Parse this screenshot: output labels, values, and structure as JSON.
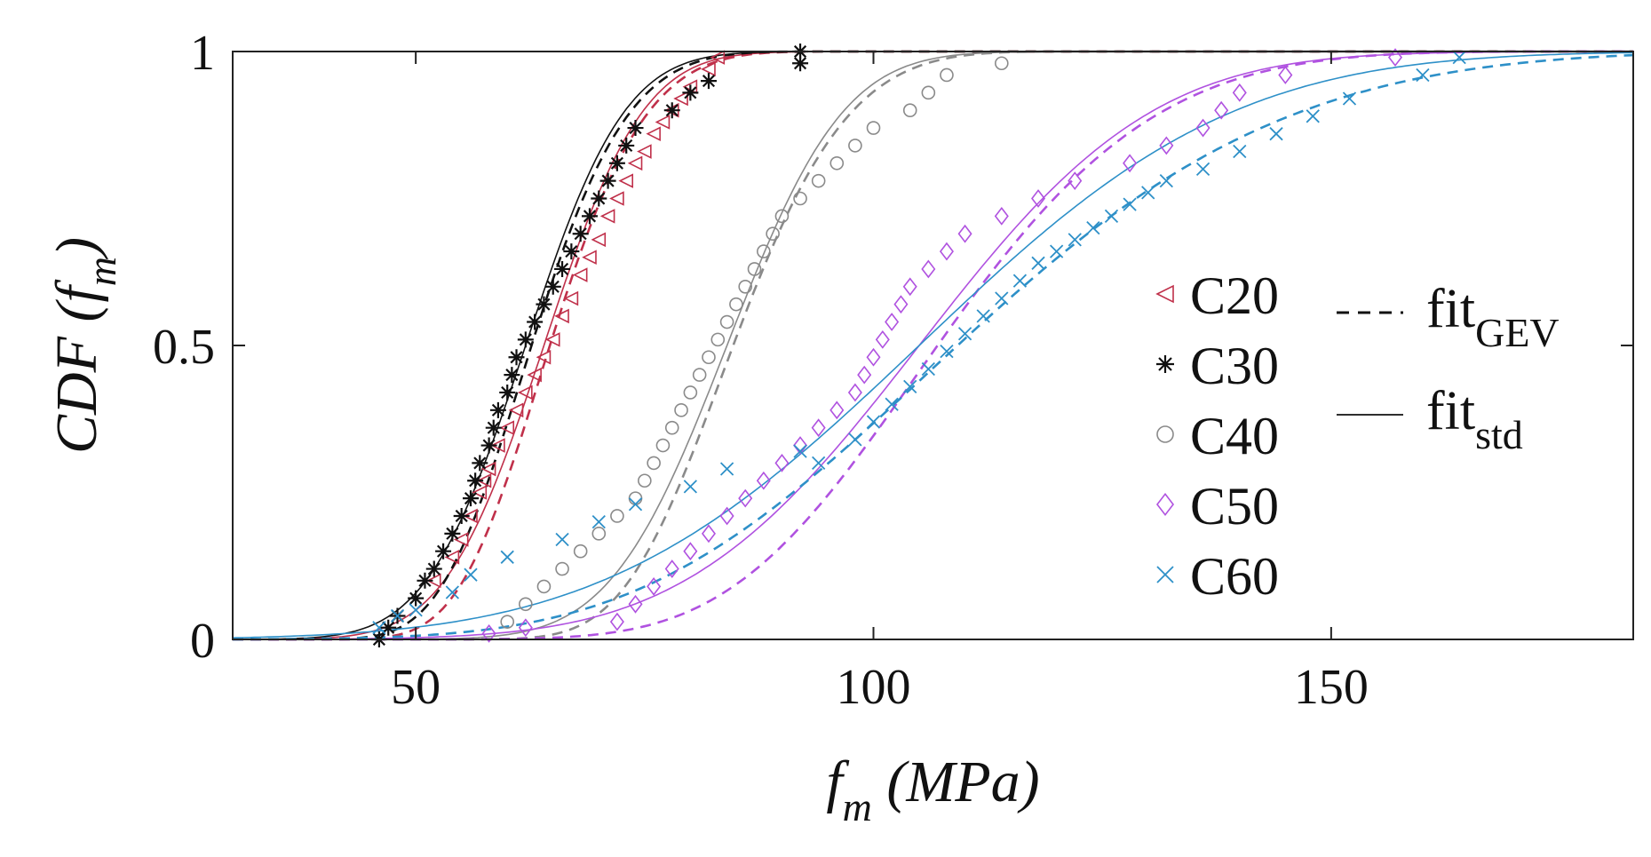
{
  "chart_data": {
    "type": "scatter",
    "title": "",
    "xlabel": {
      "main": "f",
      "sub": "m",
      "rest": " (MPa)"
    },
    "ylabel": {
      "main": "CDF (f",
      "sub": "m",
      "rest": ")"
    },
    "xlim": [
      30,
      183
    ],
    "ylim": [
      0,
      1
    ],
    "xticks": [
      50,
      100,
      150
    ],
    "xtick_labels": [
      "50",
      "100",
      "150"
    ],
    "yticks": [
      0,
      0.5,
      1
    ],
    "ytick_labels": [
      "0",
      "0.5",
      "1"
    ],
    "grid": false,
    "legend_position": "right",
    "legend_fit": [
      {
        "main": "fit",
        "sub": "GEV",
        "style": "dashed"
      },
      {
        "main": "fit",
        "sub": "std",
        "style": "solid"
      }
    ],
    "series": [
      {
        "name": "C20",
        "marker": "triangle-left",
        "color": "#c0304a",
        "points": [
          [
            52,
            0.1
          ],
          [
            54,
            0.14
          ],
          [
            55,
            0.17
          ],
          [
            56,
            0.21
          ],
          [
            57,
            0.25
          ],
          [
            57.5,
            0.27
          ],
          [
            58,
            0.29
          ],
          [
            59,
            0.33
          ],
          [
            60,
            0.36
          ],
          [
            61,
            0.39
          ],
          [
            62,
            0.42
          ],
          [
            63,
            0.45
          ],
          [
            64,
            0.48
          ],
          [
            65,
            0.51
          ],
          [
            66,
            0.55
          ],
          [
            67,
            0.58
          ],
          [
            68,
            0.62
          ],
          [
            69,
            0.65
          ],
          [
            70,
            0.68
          ],
          [
            71,
            0.72
          ],
          [
            72,
            0.75
          ],
          [
            73,
            0.78
          ],
          [
            74,
            0.81
          ],
          [
            75,
            0.83
          ],
          [
            76,
            0.86
          ],
          [
            77,
            0.88
          ],
          [
            78,
            0.9
          ],
          [
            79,
            0.92
          ],
          [
            80,
            0.94
          ],
          [
            82,
            0.97
          ],
          [
            83,
            0.99
          ]
        ],
        "gev_fit": {
          "mu": 62,
          "sigma": 7.5,
          "xi": -0.2
        },
        "std_fit": {
          "mean": 64,
          "std": 8.5
        }
      },
      {
        "name": "C30",
        "marker": "asterisk",
        "color": "#111111",
        "points": [
          [
            46,
            0.0
          ],
          [
            47,
            0.02
          ],
          [
            48,
            0.04
          ],
          [
            50,
            0.07
          ],
          [
            51,
            0.1
          ],
          [
            52,
            0.12
          ],
          [
            53,
            0.15
          ],
          [
            54,
            0.18
          ],
          [
            55,
            0.21
          ],
          [
            56,
            0.24
          ],
          [
            56.5,
            0.27
          ],
          [
            57,
            0.3
          ],
          [
            58,
            0.33
          ],
          [
            58.5,
            0.36
          ],
          [
            59,
            0.39
          ],
          [
            60,
            0.42
          ],
          [
            60.5,
            0.45
          ],
          [
            61,
            0.48
          ],
          [
            62,
            0.51
          ],
          [
            63,
            0.54
          ],
          [
            64,
            0.57
          ],
          [
            65,
            0.6
          ],
          [
            66,
            0.63
          ],
          [
            67,
            0.66
          ],
          [
            68,
            0.69
          ],
          [
            69,
            0.72
          ],
          [
            70,
            0.75
          ],
          [
            71,
            0.78
          ],
          [
            72,
            0.81
          ],
          [
            73,
            0.84
          ],
          [
            74,
            0.87
          ],
          [
            78,
            0.9
          ],
          [
            80,
            0.93
          ],
          [
            82,
            0.95
          ],
          [
            92,
            0.98
          ],
          [
            92,
            1.0
          ]
        ],
        "gev_fit": {
          "mu": 60,
          "sigma": 7.5,
          "xi": -0.2
        },
        "std_fit": {
          "mean": 62,
          "std": 8.5
        }
      },
      {
        "name": "C40",
        "marker": "circle",
        "color": "#8a8a8a",
        "points": [
          [
            60,
            0.03
          ],
          [
            62,
            0.06
          ],
          [
            64,
            0.09
          ],
          [
            66,
            0.12
          ],
          [
            68,
            0.15
          ],
          [
            70,
            0.18
          ],
          [
            72,
            0.21
          ],
          [
            74,
            0.24
          ],
          [
            75,
            0.27
          ],
          [
            76,
            0.3
          ],
          [
            77,
            0.33
          ],
          [
            78,
            0.36
          ],
          [
            79,
            0.39
          ],
          [
            80,
            0.42
          ],
          [
            81,
            0.45
          ],
          [
            82,
            0.48
          ],
          [
            83,
            0.51
          ],
          [
            84,
            0.54
          ],
          [
            85,
            0.57
          ],
          [
            86,
            0.6
          ],
          [
            87,
            0.63
          ],
          [
            88,
            0.66
          ],
          [
            89,
            0.69
          ],
          [
            90,
            0.72
          ],
          [
            92,
            0.75
          ],
          [
            94,
            0.78
          ],
          [
            96,
            0.81
          ],
          [
            98,
            0.84
          ],
          [
            100,
            0.87
          ],
          [
            104,
            0.9
          ],
          [
            106,
            0.93
          ],
          [
            108,
            0.96
          ],
          [
            114,
            0.98
          ]
        ],
        "gev_fit": {
          "mu": 81.5,
          "sigma": 9,
          "xi": -0.2
        },
        "std_fit": {
          "mean": 84,
          "std": 10
        }
      },
      {
        "name": "C50",
        "marker": "diamond",
        "color": "#b052e0",
        "points": [
          [
            58,
            0.01
          ],
          [
            62,
            0.02
          ],
          [
            72,
            0.03
          ],
          [
            74,
            0.06
          ],
          [
            76,
            0.09
          ],
          [
            78,
            0.12
          ],
          [
            80,
            0.15
          ],
          [
            82,
            0.18
          ],
          [
            84,
            0.21
          ],
          [
            86,
            0.24
          ],
          [
            88,
            0.27
          ],
          [
            90,
            0.3
          ],
          [
            92,
            0.33
          ],
          [
            94,
            0.36
          ],
          [
            96,
            0.39
          ],
          [
            98,
            0.42
          ],
          [
            99,
            0.45
          ],
          [
            100,
            0.48
          ],
          [
            101,
            0.51
          ],
          [
            102,
            0.54
          ],
          [
            103,
            0.57
          ],
          [
            104,
            0.6
          ],
          [
            106,
            0.63
          ],
          [
            108,
            0.66
          ],
          [
            110,
            0.69
          ],
          [
            114,
            0.72
          ],
          [
            118,
            0.75
          ],
          [
            122,
            0.78
          ],
          [
            128,
            0.81
          ],
          [
            132,
            0.84
          ],
          [
            136,
            0.87
          ],
          [
            138,
            0.9
          ],
          [
            140,
            0.93
          ],
          [
            145,
            0.96
          ],
          [
            157,
            0.99
          ]
        ],
        "gev_fit": {
          "mu": 101,
          "sigma": 17,
          "xi": -0.2
        },
        "std_fit": {
          "mean": 105,
          "std": 20
        }
      },
      {
        "name": "C60",
        "marker": "x",
        "color": "#2e90c8",
        "points": [
          [
            46,
            0.02
          ],
          [
            48,
            0.04
          ],
          [
            50,
            0.05
          ],
          [
            54,
            0.08
          ],
          [
            56,
            0.11
          ],
          [
            60,
            0.14
          ],
          [
            66,
            0.17
          ],
          [
            70,
            0.2
          ],
          [
            74,
            0.23
          ],
          [
            80,
            0.26
          ],
          [
            84,
            0.29
          ],
          [
            92,
            0.32
          ],
          [
            94,
            0.3
          ],
          [
            98,
            0.34
          ],
          [
            100,
            0.37
          ],
          [
            102,
            0.4
          ],
          [
            104,
            0.43
          ],
          [
            106,
            0.46
          ],
          [
            108,
            0.49
          ],
          [
            110,
            0.52
          ],
          [
            112,
            0.55
          ],
          [
            114,
            0.58
          ],
          [
            116,
            0.61
          ],
          [
            118,
            0.64
          ],
          [
            120,
            0.66
          ],
          [
            122,
            0.68
          ],
          [
            124,
            0.7
          ],
          [
            126,
            0.72
          ],
          [
            128,
            0.74
          ],
          [
            130,
            0.76
          ],
          [
            132,
            0.78
          ],
          [
            136,
            0.8
          ],
          [
            140,
            0.83
          ],
          [
            144,
            0.86
          ],
          [
            148,
            0.89
          ],
          [
            152,
            0.92
          ],
          [
            160,
            0.96
          ],
          [
            164,
            0.99
          ]
        ],
        "gev_fit": {
          "mu": 100,
          "sigma": 26,
          "xi": -0.2
        },
        "std_fit": {
          "mean": 105,
          "std": 27
        }
      }
    ]
  }
}
